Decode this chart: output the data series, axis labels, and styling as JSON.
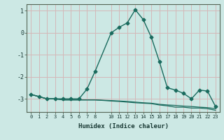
{
  "xlabel": "Humidex (Indice chaleur)",
  "bg_color": "#cce8e4",
  "grid_color": "#d4b8b8",
  "line_color": "#1a6b5e",
  "xlim": [
    -0.5,
    23.5
  ],
  "ylim": [
    -3.6,
    1.3
  ],
  "yticks": [
    1,
    0,
    -1,
    -2,
    -3
  ],
  "xticks": [
    0,
    1,
    2,
    3,
    4,
    5,
    6,
    7,
    8,
    10,
    11,
    12,
    13,
    14,
    15,
    16,
    17,
    18,
    19,
    20,
    21,
    22,
    23
  ],
  "series": [
    {
      "x": [
        0,
        1,
        2,
        3,
        4,
        5,
        6,
        7,
        8,
        10,
        11,
        12,
        13,
        14,
        15,
        16,
        17,
        18,
        19,
        20,
        21,
        22,
        23
      ],
      "y": [
        -2.8,
        -2.9,
        -3.0,
        -3.0,
        -3.0,
        -3.0,
        -3.0,
        -2.55,
        -1.75,
        0.0,
        0.25,
        0.45,
        1.05,
        0.6,
        -0.2,
        -1.3,
        -2.5,
        -2.6,
        -2.75,
        -3.0,
        -2.6,
        -2.65,
        -3.35
      ],
      "marker": true,
      "markersize": 2.5,
      "lw": 1.0
    },
    {
      "x": [
        0,
        1,
        2,
        3,
        4,
        5,
        6,
        7,
        8,
        10,
        11,
        12,
        13,
        14,
        15,
        16,
        17,
        18,
        19,
        20,
        21,
        22,
        23
      ],
      "y": [
        -2.8,
        -2.9,
        -3.0,
        -3.0,
        -3.05,
        -3.05,
        -3.05,
        -3.05,
        -3.05,
        -3.08,
        -3.1,
        -3.12,
        -3.15,
        -3.18,
        -3.2,
        -3.25,
        -3.28,
        -3.3,
        -3.33,
        -3.35,
        -3.38,
        -3.4,
        -3.45
      ],
      "marker": false,
      "lw": 0.9
    },
    {
      "x": [
        0,
        1,
        2,
        3,
        4,
        5,
        6,
        7,
        8,
        10,
        11,
        12,
        13,
        14,
        15,
        16,
        17,
        18,
        19,
        20,
        21,
        22,
        23
      ],
      "y": [
        -2.8,
        -2.9,
        -3.0,
        -3.0,
        -3.05,
        -3.05,
        -3.05,
        -3.05,
        -3.05,
        -3.1,
        -3.12,
        -3.15,
        -3.18,
        -3.2,
        -3.22,
        -3.28,
        -3.32,
        -3.38,
        -3.38,
        -3.42,
        -3.42,
        -3.45,
        -3.52
      ],
      "marker": false,
      "lw": 0.9
    }
  ]
}
